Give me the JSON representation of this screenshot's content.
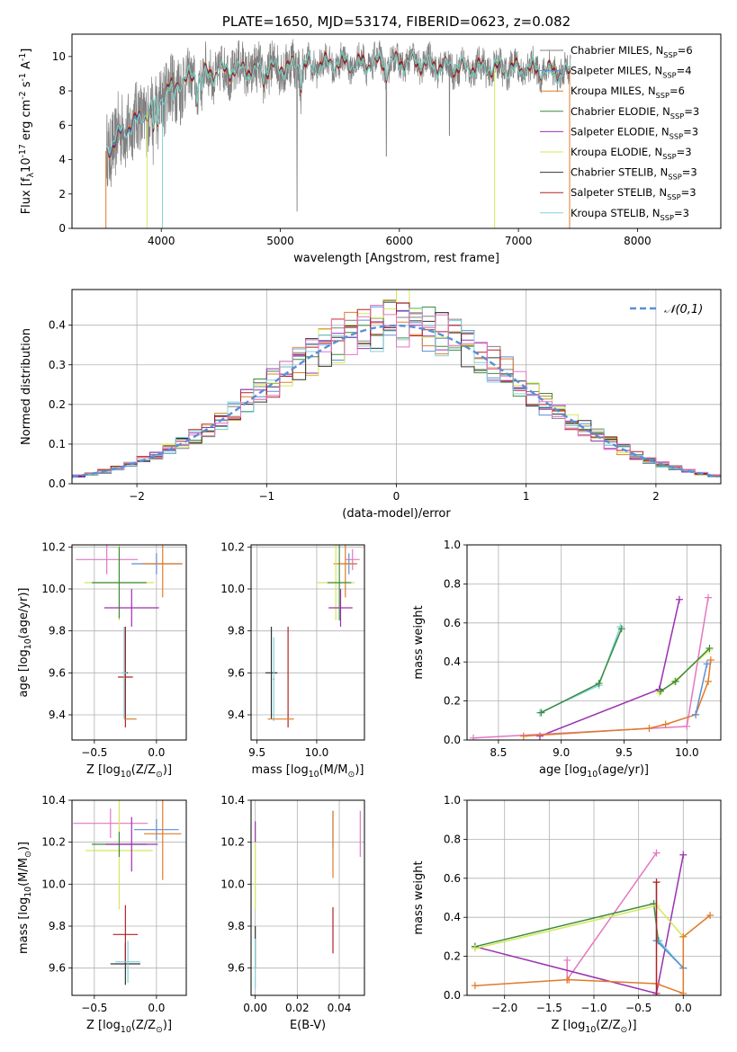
{
  "chart_data": [
    {
      "type": "line",
      "title": "PLATE=1650, MJD=53174, FIBERID=0623, z=0.082",
      "xlabel": "wavelength [Angstrom, rest frame]",
      "ylabel": "Flux [f$_\\lambda$10$^{-17}$ erg cm$^{-2}$ s$^{-1}$ A$^{-1}$]",
      "xlim": [
        3250,
        8700
      ],
      "ylim": [
        0,
        11.3
      ],
      "xticks": [
        4000,
        5000,
        6000,
        7000,
        8000
      ],
      "yticks": [
        0,
        2,
        4,
        6,
        8,
        10
      ],
      "grid": false,
      "legend_position": "right",
      "series": [
        {
          "name": "Chabrier MILES, N$_{SSP}$=6",
          "color": "#808080"
        },
        {
          "name": "Salpeter MILES, N$_{SSP}$=4",
          "color": "#5b8ed6"
        },
        {
          "name": "Kroupa MILES, N$_{SSP}$=6",
          "color": "#e07b2a"
        },
        {
          "name": "Chabrier ELODIE, N$_{SSP}$=3",
          "color": "#3c8c3c"
        },
        {
          "name": "Salpeter ELODIE, N$_{SSP}$=3",
          "color": "#9b30b0"
        },
        {
          "name": "Kroupa ELODIE, N$_{SSP}$=3",
          "color": "#d4e85a"
        },
        {
          "name": "Chabrier STELIB, N$_{SSP}$=3",
          "color": "#333333"
        },
        {
          "name": "Salpeter STELIB, N$_{SSP}$=3",
          "color": "#b22222"
        },
        {
          "name": "Kroupa STELIB, N$_{SSP}$=3",
          "color": "#7fd4dc"
        }
      ],
      "spectrum_shape": {
        "x": [
          3540,
          3600,
          3700,
          3800,
          3900,
          4000,
          4100,
          4200,
          4300,
          4400,
          4500,
          4600,
          4700,
          4800,
          4900,
          5000,
          5200,
          5400,
          5600,
          5800,
          6000,
          6200,
          6400,
          6600,
          6800,
          7000,
          7200,
          7400
        ],
        "y": [
          4.5,
          5.0,
          5.8,
          6.3,
          6.8,
          7.6,
          8.4,
          8.6,
          8.9,
          9.0,
          9.1,
          9.2,
          9.3,
          9.1,
          9.3,
          9.4,
          9.5,
          9.6,
          9.6,
          9.6,
          9.7,
          9.6,
          9.4,
          9.4,
          9.3,
          9.3,
          9.2,
          9.0
        ]
      }
    },
    {
      "type": "line",
      "xlabel": "(data-model)/error",
      "ylabel": "Normed distribution",
      "xlim": [
        -2.5,
        2.5
      ],
      "ylim": [
        0,
        0.49
      ],
      "xticks": [
        -2,
        -1,
        0,
        1,
        2
      ],
      "yticks": [
        0.0,
        0.1,
        0.2,
        0.3,
        0.4
      ],
      "grid": true,
      "legend_position": "top-right",
      "reference_curve": {
        "name": "$\\mathcal{N}(0,1)$",
        "mean": 0,
        "sigma": 1,
        "color": "#5b8ed6",
        "style": "dashed"
      },
      "bin_width": 0.1
    },
    {
      "type": "scatter",
      "xlabel": "Z [log$_{10}$(Z/Z$_\\odot$)]",
      "ylabel": "age  [log$_{10}$(age/yr)]",
      "xlim": [
        -0.68,
        0.24
      ],
      "ylim": [
        9.28,
        10.21
      ],
      "xticks": [
        -0.5,
        0.0
      ],
      "yticks": [
        9.4,
        9.6,
        9.8,
        10.0,
        10.2
      ],
      "grid": true,
      "points": [
        {
          "color": "#e377c2",
          "x": -0.4,
          "xerr": 0.25,
          "y": 10.14,
          "yerr": 0.07
        },
        {
          "color": "#5b8ed6",
          "x": 0.0,
          "xerr": 0.2,
          "y": 10.12,
          "yerr": 0.05
        },
        {
          "color": "#e07b2a",
          "x": 0.05,
          "xerr": 0.16,
          "y": 10.12,
          "yerr": 0.16
        },
        {
          "color": "#d4e85a",
          "x": -0.3,
          "xerr": 0.28,
          "y": 10.03,
          "yerr": 0.18
        },
        {
          "color": "#3c8c3c",
          "x": -0.3,
          "xerr": 0.22,
          "y": 10.03,
          "yerr": 0.17
        },
        {
          "color": "#9b30b0",
          "x": -0.2,
          "xerr": 0.22,
          "y": 9.91,
          "yerr": 0.09
        },
        {
          "color": "#333333",
          "x": -0.25,
          "xerr": 0.02,
          "y": 9.6,
          "yerr": 0.22
        },
        {
          "color": "#b22222",
          "x": -0.25,
          "xerr": 0.06,
          "y": 9.58,
          "yerr": 0.24
        },
        {
          "color": "#7fd4dc",
          "x": -0.26,
          "xerr": 0.02,
          "y": 9.6,
          "yerr": 0.22
        },
        {
          "color": "#e07b2a",
          "x": -0.21,
          "xerr": 0.05,
          "y": 9.38,
          "yerr": 0.0
        }
      ]
    },
    {
      "type": "scatter",
      "xlabel": "mass [log$_{10}$(M/M$_\\odot$)]",
      "xlim": [
        9.45,
        10.4
      ],
      "ylim": [
        9.28,
        10.21
      ],
      "xticks": [
        9.5,
        10.0
      ],
      "yticks": [
        9.4,
        9.6,
        9.8,
        10.0,
        10.2
      ],
      "grid": true,
      "points": [
        {
          "color": "#e377c2",
          "x": 10.3,
          "xerr": 0.06,
          "y": 10.14,
          "yerr": 0.05
        },
        {
          "color": "#5b8ed6",
          "x": 10.27,
          "xerr": 0.06,
          "y": 10.12,
          "yerr": 0.05
        },
        {
          "color": "#e07b2a",
          "x": 10.24,
          "xerr": 0.1,
          "y": 10.12,
          "yerr": 0.16
        },
        {
          "color": "#d4e85a",
          "x": 10.16,
          "xerr": 0.16,
          "y": 10.03,
          "yerr": 0.18
        },
        {
          "color": "#3c8c3c",
          "x": 10.19,
          "xerr": 0.1,
          "y": 10.03,
          "yerr": 0.18
        },
        {
          "color": "#9b30b0",
          "x": 10.2,
          "xerr": 0.1,
          "y": 9.91,
          "yerr": 0.09
        },
        {
          "color": "#333333",
          "x": 9.62,
          "xerr": 0.05,
          "y": 9.6,
          "yerr": 0.22
        },
        {
          "color": "#b22222",
          "x": 9.76,
          "xerr": 0.0,
          "y": 9.58,
          "yerr": 0.24
        },
        {
          "color": "#7fd4dc",
          "x": 9.64,
          "xerr": 0.01,
          "y": 9.57,
          "yerr": 0.2
        },
        {
          "color": "#e07b2a",
          "x": 9.7,
          "xerr": 0.11,
          "y": 9.38,
          "yerr": 0.0
        }
      ]
    },
    {
      "type": "line",
      "xlabel": "age  [log$_{10}$(age/yr)]",
      "ylabel": "mass weight",
      "xlim": [
        8.25,
        10.27
      ],
      "ylim": [
        0,
        1
      ],
      "xticks": [
        8.5,
        9.0,
        9.5,
        10.0
      ],
      "yticks": [
        0.0,
        0.2,
        0.4,
        0.6,
        0.8,
        1.0
      ],
      "grid": true,
      "series": [
        {
          "color": "#7fd4dc",
          "x": [
            8.83,
            9.3,
            9.47
          ],
          "y": [
            0.14,
            0.28,
            0.58
          ]
        },
        {
          "color": "#3c8c3c",
          "x": [
            8.84,
            9.3,
            9.48
          ],
          "y": [
            0.14,
            0.29,
            0.57
          ]
        },
        {
          "color": "#9b30b0",
          "x": [
            8.83,
            9.78,
            9.94
          ],
          "y": [
            0.02,
            0.26,
            0.72
          ]
        },
        {
          "color": "#e377c2",
          "x": [
            8.3,
            10.0,
            10.17
          ],
          "y": [
            0.01,
            0.07,
            0.73
          ]
        },
        {
          "color": "#d4e85a",
          "x": [
            9.78,
            9.9,
            10.18
          ],
          "y": [
            0.24,
            0.3,
            0.46
          ]
        },
        {
          "color": "#3c8c3c",
          "x": [
            9.79,
            9.91,
            10.18
          ],
          "y": [
            0.25,
            0.3,
            0.47
          ]
        },
        {
          "color": "#e07b2a",
          "x": [
            8.7,
            9.7,
            9.83,
            10.07,
            10.17,
            10.19
          ],
          "y": [
            0.02,
            0.06,
            0.08,
            0.13,
            0.3,
            0.41
          ]
        },
        {
          "color": "#5b8ed6",
          "x": [
            10.07,
            10.16
          ],
          "y": [
            0.13,
            0.39
          ]
        }
      ]
    },
    {
      "type": "scatter",
      "xlabel": "Z [log$_{10}$(Z/Z$_\\odot$)]",
      "ylabel": "mass [log$_{10}$(M/M$_\\odot$)]",
      "xlim": [
        -0.68,
        0.24
      ],
      "ylim": [
        9.47,
        10.4
      ],
      "xticks": [
        -0.5,
        0.0
      ],
      "yticks": [
        9.6,
        9.8,
        10.0,
        10.2,
        10.4
      ],
      "grid": true,
      "points": [
        {
          "color": "#e377c2",
          "x": -0.37,
          "xerr": 0.3,
          "y": 10.29,
          "yerr": 0.07
        },
        {
          "color": "#5b8ed6",
          "x": 0.0,
          "xerr": 0.18,
          "y": 10.26,
          "yerr": 0.05
        },
        {
          "color": "#e07b2a",
          "x": 0.05,
          "xerr": 0.15,
          "y": 10.24,
          "yerr": 0.22
        },
        {
          "color": "#d4e85a",
          "x": -0.3,
          "xerr": 0.27,
          "y": 10.16,
          "yerr": 0.28
        },
        {
          "color": "#3c8c3c",
          "x": -0.3,
          "xerr": 0.22,
          "y": 10.19,
          "yerr": 0.06
        },
        {
          "color": "#9b30b0",
          "x": -0.2,
          "xerr": 0.21,
          "y": 10.19,
          "yerr": 0.13
        },
        {
          "color": "#333333",
          "x": -0.25,
          "xerr": 0.12,
          "y": 9.62,
          "yerr": 0.1
        },
        {
          "color": "#b22222",
          "x": -0.25,
          "xerr": 0.1,
          "y": 9.76,
          "yerr": 0.14
        },
        {
          "color": "#7fd4dc",
          "x": -0.23,
          "xerr": 0.1,
          "y": 9.63,
          "yerr": 0.1
        }
      ]
    },
    {
      "type": "scatter",
      "xlabel": "E(B-V)",
      "xlim": [
        -0.002,
        0.052
      ],
      "ylim": [
        9.47,
        10.4
      ],
      "xticks": [
        0.0,
        0.02,
        0.04
      ],
      "yticks": [
        9.6,
        9.8,
        10.0,
        10.2,
        10.4
      ],
      "grid": true,
      "points": [
        {
          "color": "#e377c2",
          "x": 0.05,
          "xerr": 0.0,
          "y": 10.24,
          "yerr": 0.11
        },
        {
          "color": "#5b8ed6",
          "x": 0.037,
          "xerr": 0.0,
          "y": 10.26,
          "yerr": 0.09
        },
        {
          "color": "#e07b2a",
          "x": 0.037,
          "xerr": 0.0,
          "y": 10.19,
          "yerr": 0.16
        },
        {
          "color": "#d4e85a",
          "x": 0.0,
          "xerr": 0.0,
          "y": 10.07,
          "yerr": 0.19
        },
        {
          "color": "#9b30b0",
          "x": 0.0,
          "xerr": 0.0,
          "y": 10.25,
          "yerr": 0.05
        },
        {
          "color": "#b22222",
          "x": 0.037,
          "xerr": 0.0,
          "y": 9.78,
          "yerr": 0.11
        },
        {
          "color": "#333333",
          "x": 0.0,
          "xerr": 0.0,
          "y": 9.7,
          "yerr": 0.1
        },
        {
          "color": "#7fd4dc",
          "x": 0.0,
          "xerr": 0.0,
          "y": 9.62,
          "yerr": 0.12
        }
      ]
    },
    {
      "type": "line",
      "xlabel": "Z [log$_{10}$(Z/Z$_\\odot$)]",
      "ylabel": "mass weight",
      "xlim": [
        -2.42,
        0.42
      ],
      "ylim": [
        0,
        1
      ],
      "xticks": [
        -2.0,
        -1.5,
        -1.0,
        -0.5,
        0.0
      ],
      "yticks": [
        0.0,
        0.2,
        0.4,
        0.6,
        0.8,
        1.0
      ],
      "grid": true,
      "series": [
        {
          "color": "#e377c2",
          "x": [
            -1.3,
            -1.3,
            -0.3
          ],
          "y": [
            0.18,
            0.08,
            0.73
          ]
        },
        {
          "color": "#9b30b0",
          "x": [
            -2.33,
            -0.3,
            0.0
          ],
          "y": [
            0.25,
            0.01,
            0.72
          ]
        },
        {
          "color": "#3c8c3c",
          "x": [
            -2.33,
            -0.33,
            -0.28,
            0.0
          ],
          "y": [
            0.25,
            0.47,
            0.28,
            0.14
          ]
        },
        {
          "color": "#d4e85a",
          "x": [
            -2.33,
            -0.3,
            0.0
          ],
          "y": [
            0.24,
            0.46,
            0.3
          ]
        },
        {
          "color": "#7fd4dc",
          "x": [
            -0.3,
            -0.3,
            -0.27,
            0.0
          ],
          "y": [
            0.58,
            0.28,
            0.28,
            0.14
          ]
        },
        {
          "color": "#5b8ed6",
          "x": [
            -0.3,
            0.0
          ],
          "y": [
            0.28,
            0.14
          ]
        },
        {
          "color": "#e07b2a",
          "x": [
            -2.33,
            -1.3,
            -1.28,
            -0.3,
            0.0,
            0.0,
            0.3
          ],
          "y": [
            0.05,
            0.08,
            0.08,
            0.06,
            0.01,
            0.3,
            0.41
          ]
        },
        {
          "color": "#b22222",
          "x": [
            -0.3,
            -0.3
          ],
          "y": [
            0.58,
            0.0
          ]
        }
      ]
    }
  ]
}
